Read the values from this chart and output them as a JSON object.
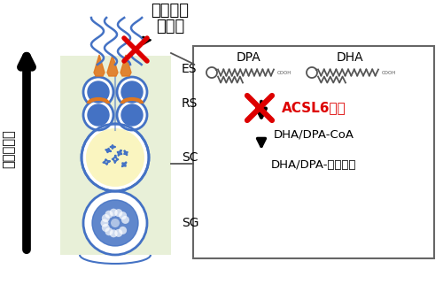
{
  "title_top": "精子放出",
  "title_top2": "・受精",
  "left_label": "精細胞分化",
  "box_label_dpa": "DPA",
  "box_label_dha": "DHA",
  "acsl6_text": "ACSL6欠損",
  "step1_text": "DHA/DPA-CoA",
  "step2_text": "DHA/DPA-リン脂質",
  "bg_color": "#ffffff",
  "cell_column_bg": "#e8f0d8",
  "x_color": "#dd0000",
  "cell_border_color": "#4472c4",
  "blue_fill": "#4472c4",
  "orange_color": "#e07820",
  "chain_color": "#555555"
}
